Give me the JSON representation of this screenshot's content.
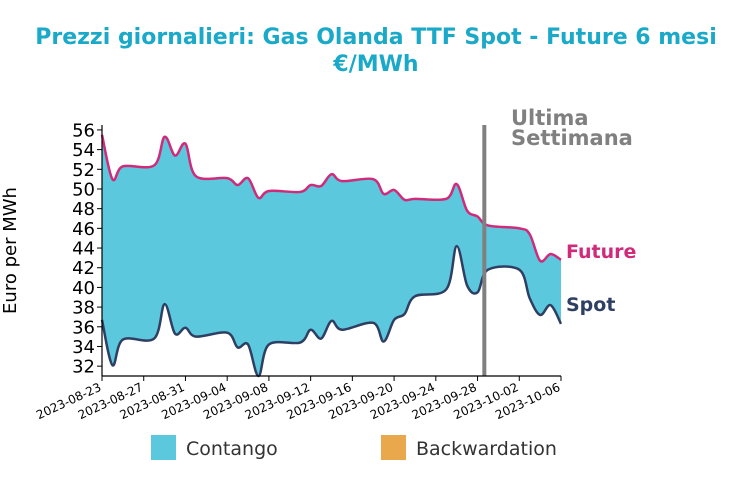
{
  "chart_data": {
    "type": "area",
    "title_line1": "Prezzi giornalieri: Gas Olanda TTF Spot - Future 6 mesi",
    "title_line2": "€/MWh",
    "ylabel": "Euro per MWh",
    "xlabel": "",
    "ylim": [
      31,
      56.5
    ],
    "yticks": [
      "32",
      "34",
      "36",
      "38",
      "40",
      "42",
      "44",
      "46",
      "48",
      "50",
      "52",
      "54",
      "56"
    ],
    "xticks": [
      "2023-08-23",
      "2023-08-27",
      "2023-08-31",
      "2023-09-04",
      "2023-09-08",
      "2023-09-12",
      "2023-09-16",
      "2023-09-20",
      "2023-09-24",
      "2023-09-28",
      "2023-10-02",
      "2023-10-06"
    ],
    "x": [
      "2023-08-23",
      "2023-08-24",
      "2023-08-25",
      "2023-08-28",
      "2023-08-29",
      "2023-08-30",
      "2023-08-31",
      "2023-09-01",
      "2023-09-04",
      "2023-09-05",
      "2023-09-06",
      "2023-09-07",
      "2023-09-08",
      "2023-09-11",
      "2023-09-12",
      "2023-09-13",
      "2023-09-14",
      "2023-09-15",
      "2023-09-18",
      "2023-09-19",
      "2023-09-20",
      "2023-09-21",
      "2023-09-22",
      "2023-09-25",
      "2023-09-26",
      "2023-09-27",
      "2023-09-28",
      "2023-09-29",
      "2023-10-02",
      "2023-10-03",
      "2023-10-04",
      "2023-10-05",
      "2023-10-06"
    ],
    "series": [
      {
        "name": "Future",
        "color": "#d02b7a",
        "values": [
          55.5,
          51.0,
          52.3,
          52.4,
          55.3,
          53.4,
          54.6,
          51.3,
          51.1,
          50.4,
          51.1,
          49.1,
          49.8,
          49.7,
          50.4,
          50.3,
          51.5,
          50.8,
          51.0,
          49.5,
          49.9,
          48.9,
          49.0,
          49.0,
          50.5,
          47.8,
          47.2,
          46.3,
          46.0,
          45.4,
          42.7,
          43.4,
          42.8
        ]
      },
      {
        "name": "Spot",
        "color": "#2e3f63",
        "values": [
          36.7,
          32.1,
          34.7,
          34.8,
          38.3,
          35.3,
          35.9,
          35.0,
          35.4,
          33.9,
          34.2,
          31.0,
          34.2,
          34.4,
          35.7,
          34.8,
          36.6,
          35.7,
          36.4,
          34.5,
          36.7,
          37.3,
          39.1,
          39.8,
          44.2,
          40.2,
          39.5,
          41.8,
          41.8,
          38.9,
          37.2,
          38.2,
          36.3
        ]
      }
    ],
    "fill_colors": {
      "contango": "#5bc8dd",
      "backwardation": "#e8a84b"
    },
    "legend": [
      {
        "label": "Contango",
        "color": "#5bc8dd"
      },
      {
        "label": "Backwardation",
        "color": "#e8a84b"
      }
    ],
    "legend_position": "bottom",
    "annotation": {
      "line1": "Ultima",
      "line2": "Settimana",
      "x": "2023-09-29",
      "color": "#808080"
    },
    "series_labels": [
      {
        "text": "Future",
        "color": "#d02b7a"
      },
      {
        "text": "Spot",
        "color": "#2e3f63"
      }
    ],
    "grid": false
  }
}
